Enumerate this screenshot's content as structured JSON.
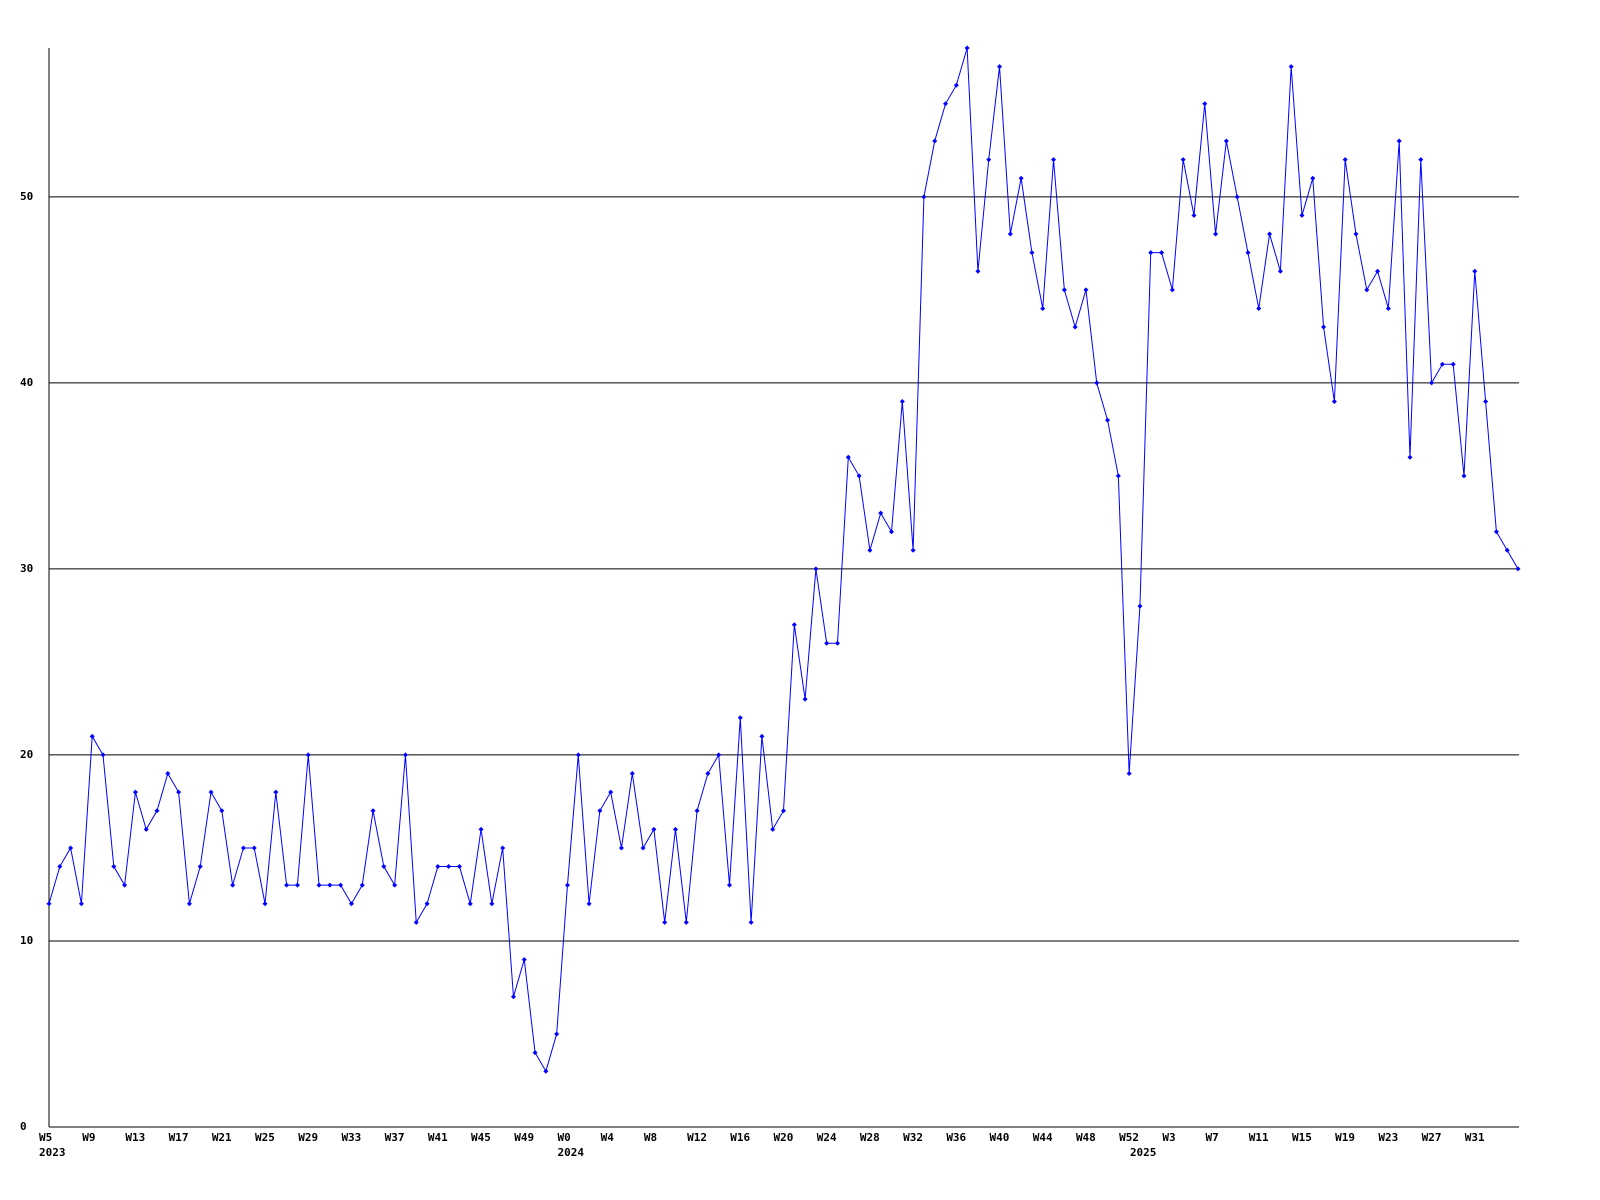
{
  "chart_data": {
    "type": "line",
    "categories": [
      "W5",
      null,
      null,
      null,
      "W9",
      null,
      null,
      null,
      "W13",
      null,
      null,
      null,
      "W17",
      null,
      null,
      null,
      "W21",
      null,
      null,
      null,
      "W25",
      null,
      null,
      null,
      "W29",
      null,
      null,
      null,
      "W33",
      null,
      null,
      null,
      "W37",
      null,
      null,
      null,
      "W41",
      null,
      null,
      null,
      "W45",
      null,
      null,
      null,
      "W49",
      null,
      null,
      null,
      "W0",
      null,
      null,
      null,
      "W4",
      null,
      null,
      null,
      "W8",
      null,
      null,
      null,
      "W12",
      null,
      null,
      null,
      "W16",
      null,
      null,
      null,
      "W20",
      null,
      null,
      null,
      "W24",
      null,
      null,
      null,
      "W28",
      null,
      null,
      null,
      "W32",
      null,
      null,
      null,
      "W36",
      null,
      null,
      null,
      "W40",
      null,
      null,
      null,
      "W44",
      null,
      null,
      null,
      "W48",
      null,
      null,
      null,
      "W52",
      null,
      null,
      null,
      "W3",
      null,
      null,
      null,
      "W7",
      null,
      null,
      null,
      "W11",
      null,
      null,
      null,
      "W15",
      null,
      null,
      null,
      "W19",
      null,
      null,
      null,
      "W23",
      null,
      null,
      null,
      "W27",
      null,
      null,
      null,
      "W31",
      null,
      null,
      null,
      null
    ],
    "x_years": [
      "2023",
      null,
      null,
      null,
      null,
      null,
      null,
      null,
      null,
      null,
      null,
      null,
      null,
      null,
      null,
      null,
      null,
      null,
      null,
      null,
      null,
      null,
      null,
      null,
      null,
      null,
      null,
      null,
      null,
      null,
      null,
      null,
      null,
      null,
      null,
      null,
      null,
      null,
      null,
      null,
      null,
      null,
      null,
      null,
      null,
      null,
      null,
      null,
      "2024",
      null,
      null,
      null,
      null,
      null,
      null,
      null,
      null,
      null,
      null,
      null,
      null,
      null,
      null,
      null,
      null,
      null,
      null,
      null,
      null,
      null,
      null,
      null,
      null,
      null,
      null,
      null,
      null,
      null,
      null,
      null,
      null,
      null,
      null,
      null,
      null,
      null,
      null,
      null,
      null,
      null,
      null,
      null,
      null,
      null,
      null,
      null,
      null,
      null,
      null,
      null,
      null,
      "2025",
      null,
      null,
      null,
      null,
      null,
      null,
      null,
      null,
      null,
      null,
      null,
      null,
      null,
      null,
      null,
      null,
      null,
      null,
      null,
      null,
      null,
      null,
      null,
      null,
      null,
      null,
      null,
      null,
      null,
      null,
      null,
      null,
      null,
      null,
      null
    ],
    "values": [
      12,
      14,
      15,
      12,
      21,
      20,
      14,
      13,
      18,
      16,
      17,
      19,
      18,
      12,
      14,
      18,
      17,
      13,
      15,
      15,
      12,
      18,
      13,
      13,
      20,
      13,
      13,
      13,
      12,
      13,
      17,
      14,
      13,
      20,
      11,
      12,
      14,
      14,
      14,
      12,
      16,
      12,
      15,
      7,
      9,
      4,
      3,
      5,
      13,
      20,
      12,
      17,
      18,
      15,
      19,
      15,
      16,
      11,
      16,
      11,
      17,
      19,
      20,
      13,
      22,
      11,
      21,
      16,
      17,
      27,
      23,
      30,
      26,
      26,
      36,
      35,
      31,
      33,
      32,
      39,
      31,
      50,
      53,
      55,
      56,
      58,
      46,
      52,
      57,
      48,
      51,
      47,
      44,
      52,
      45,
      43,
      45,
      40,
      38,
      35,
      19,
      28,
      47,
      47,
      45,
      52,
      49,
      55,
      48,
      53,
      50,
      47,
      44,
      48,
      46,
      57,
      49,
      51,
      43,
      39,
      52,
      48,
      45,
      46,
      44,
      53,
      36,
      52,
      40,
      41,
      41,
      35,
      46,
      39,
      32,
      31,
      30
    ],
    "color": "#0000ff",
    "ylim": [
      0,
      58
    ],
    "yticks": [
      0,
      10,
      20,
      30,
      40,
      50
    ],
    "grid": true
  }
}
